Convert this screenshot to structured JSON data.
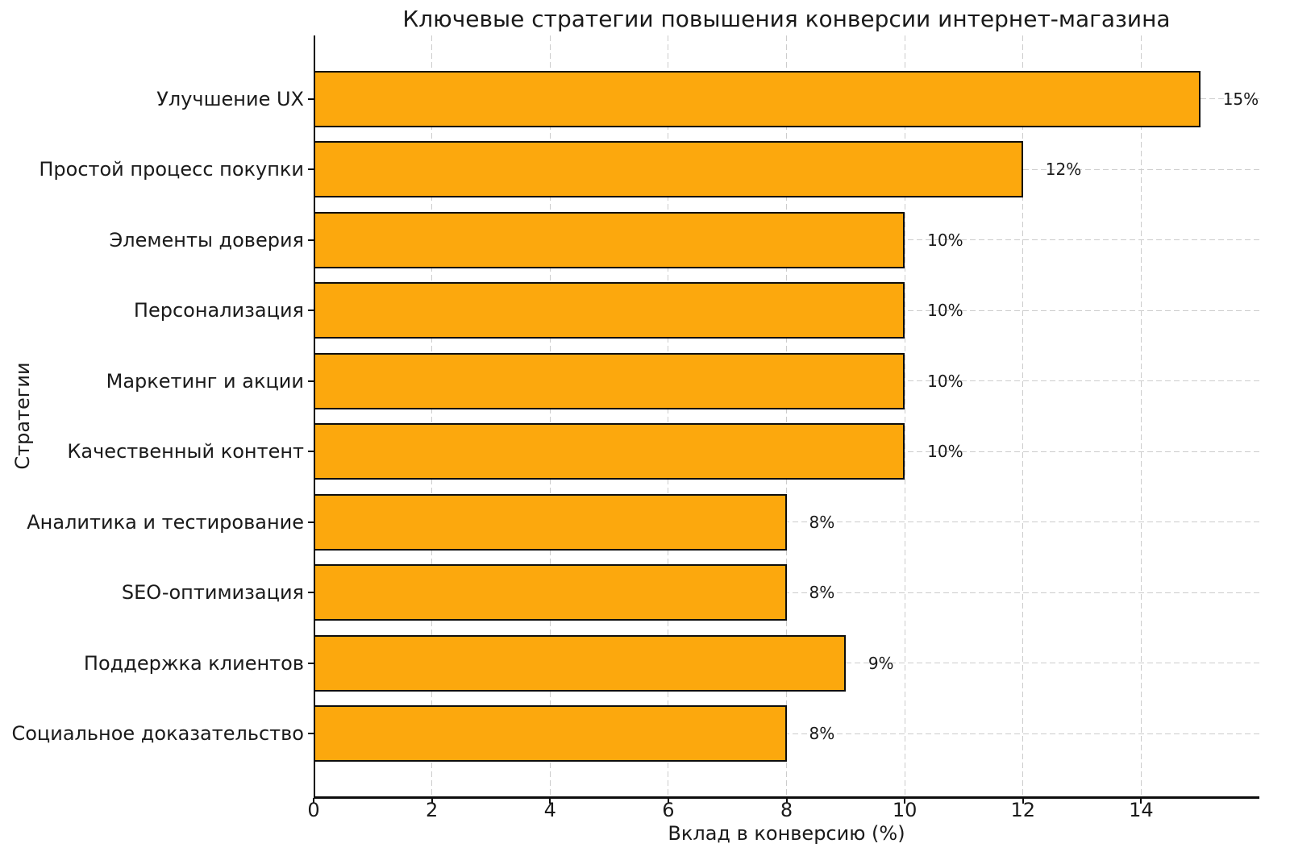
{
  "chart_data": {
    "type": "bar",
    "orientation": "horizontal",
    "title": "Ключевые стратегии повышения конверсии интернет-магазина",
    "xlabel": "Вклад в конверсию (%)",
    "ylabel": "Стратегии",
    "categories": [
      "Улучшение UX",
      "Простой процесс покупки",
      "Элементы доверия",
      "Персонализация",
      "Маркетинг и акции",
      "Качественный контент",
      "Аналитика и тестирование",
      "SEO-оптимизация",
      "Поддержка клиентов",
      "Социальное доказательство"
    ],
    "values": [
      15,
      12,
      10,
      10,
      10,
      10,
      8,
      8,
      9,
      8
    ],
    "value_labels": [
      "15%",
      "12%",
      "10%",
      "10%",
      "10%",
      "10%",
      "8%",
      "8%",
      "9%",
      "8%"
    ],
    "xticks": [
      0,
      2,
      4,
      6,
      8,
      10,
      12,
      14
    ],
    "xtick_labels": [
      "0",
      "2",
      "4",
      "6",
      "8",
      "10",
      "12",
      "14"
    ],
    "xlim": [
      0,
      16
    ],
    "grid": true,
    "grid_style": "dashed",
    "legend": "none",
    "bar_color": "#FCA80D",
    "bar_edge_color": "#0d0d0d",
    "grid_color": "#cccccc",
    "text_color": "#1a1a1a"
  }
}
